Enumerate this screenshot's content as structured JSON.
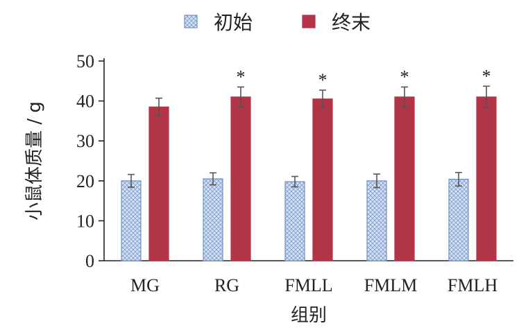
{
  "chart_data": {
    "type": "bar",
    "categories": [
      "MG",
      "RG",
      "FMLL",
      "FMLM",
      "FMLH"
    ],
    "series": [
      {
        "name": "初始",
        "values": [
          20.0,
          20.5,
          19.8,
          20.0,
          20.4
        ],
        "errors": [
          1.6,
          1.5,
          1.3,
          1.7,
          1.7
        ],
        "color": "#b8cbe8",
        "pattern": "crosshatch"
      },
      {
        "name": "终末",
        "values": [
          38.5,
          41.0,
          40.5,
          41.0,
          41.0
        ],
        "errors": [
          2.2,
          2.5,
          2.2,
          2.5,
          2.7
        ],
        "color": "#b23447"
      }
    ],
    "significance": [
      "",
      "*",
      "*",
      "*",
      "*"
    ],
    "xlabel": "组别",
    "ylabel": "小鼠体质量 / g",
    "ylim": [
      0,
      50
    ],
    "yticks": [
      0,
      10,
      20,
      30,
      40,
      50
    ],
    "legend_position": "top",
    "grid": false
  }
}
